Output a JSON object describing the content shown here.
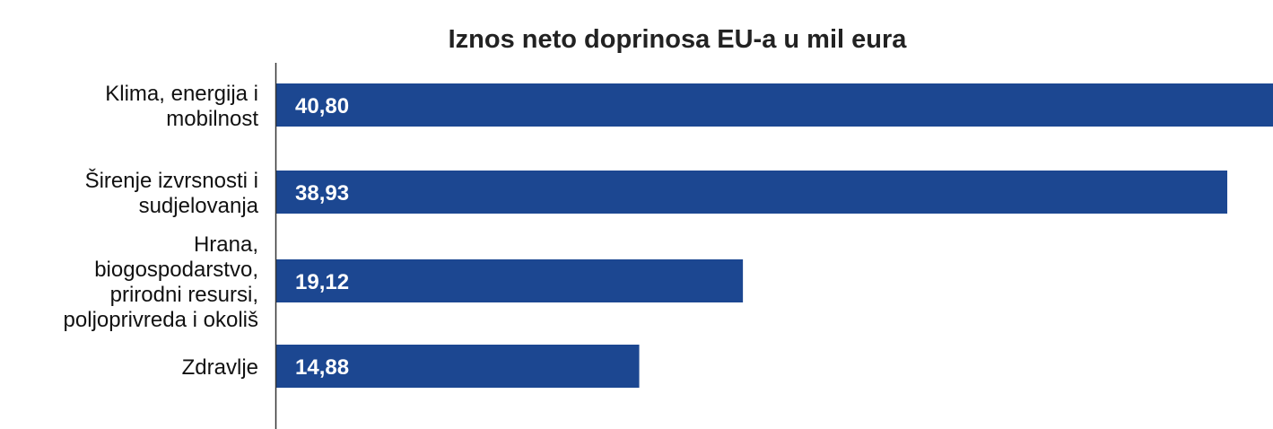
{
  "chart_data": {
    "type": "bar",
    "orientation": "horizontal",
    "title": "Iznos neto doprinosa EU-a u mil eura",
    "categories": [
      [
        "Klima, energija i",
        "mobilnost"
      ],
      [
        "Širenje izvrsnosti i",
        "sudjelovanja"
      ],
      [
        "Hrana,",
        "biogospodarstvo,",
        "prirodni resursi,",
        "poljoprivreda i okoliš"
      ],
      [
        "Zdravlje"
      ]
    ],
    "values": [
      40.8,
      38.93,
      19.12,
      14.88
    ],
    "value_labels": [
      "40,80",
      "38,93",
      "19,12",
      "14,88"
    ],
    "xlim": [
      0,
      40.8
    ],
    "xlabel": "",
    "ylabel": "",
    "grid": false,
    "legend": "none",
    "colors": {
      "bar": "#1c4791",
      "axis": "#333333",
      "title": "#222222",
      "label": "#111111",
      "value": "#ffffff"
    }
  }
}
